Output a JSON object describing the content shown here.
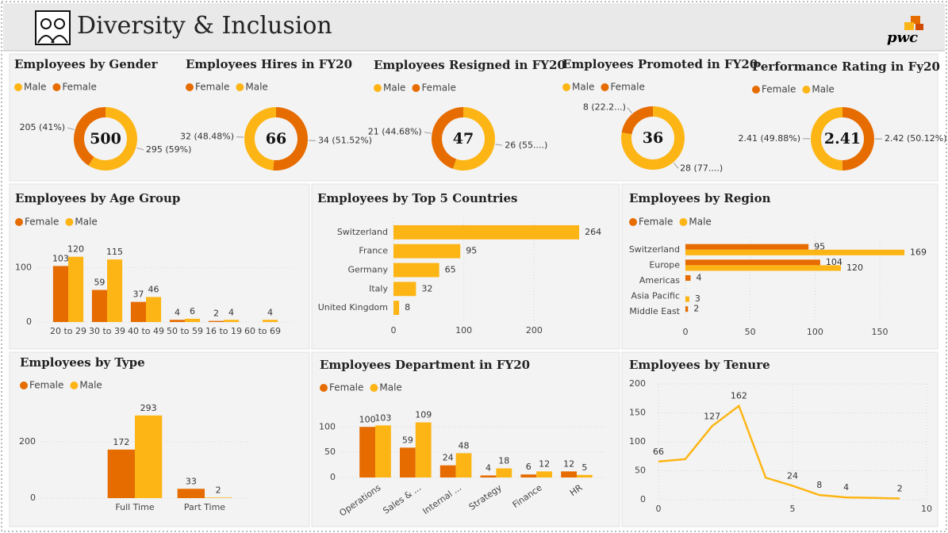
{
  "header": {
    "title": "Diversity & Inclusion",
    "logo": "pwc"
  },
  "chart_data": [
    {
      "type": "donut",
      "title": "Employees by Gender",
      "categories": [
        "Male",
        "Female"
      ],
      "values": [
        295,
        205
      ],
      "value_labels": [
        "295 (59%)",
        "205 (41%)"
      ],
      "colors": [
        "#FDB515",
        "#E66C00"
      ],
      "center_value": 500
    },
    {
      "type": "donut",
      "title": "Employees Hires in FY20",
      "categories": [
        "Female",
        "Male"
      ],
      "values": [
        34,
        32
      ],
      "value_labels": [
        "34 (51.52%)",
        "32 (48.48%)"
      ],
      "colors": [
        "#E66C00",
        "#FDB515"
      ],
      "center_value": 66
    },
    {
      "type": "donut",
      "title": "Employees Resigned in FY20",
      "categories": [
        "Male",
        "Female"
      ],
      "values": [
        26,
        21
      ],
      "value_labels": [
        "26 (55....)",
        "21 (44.68%)"
      ],
      "colors": [
        "#FDB515",
        "#E66C00"
      ],
      "center_value": 47
    },
    {
      "type": "donut",
      "title": "Employees Promoted in FY20",
      "categories": [
        "Male",
        "Female"
      ],
      "values": [
        28,
        8
      ],
      "value_labels": [
        "28 (77....)",
        "8 (22.2...)"
      ],
      "colors": [
        "#FDB515",
        "#E66C00"
      ],
      "center_value": 36
    },
    {
      "type": "donut",
      "title": "Performance Rating in Fy20",
      "categories": [
        "Female",
        "Male"
      ],
      "values": [
        2.42,
        2.41
      ],
      "value_labels": [
        "2.42 (50.12%)",
        "2.41 (49.88%)"
      ],
      "colors": [
        "#E66C00",
        "#FDB515"
      ],
      "center_value": 2.41
    },
    {
      "type": "bar",
      "title": "Employees by Age Group",
      "categories": [
        "20 to 29",
        "30 to 39",
        "40 to 49",
        "50 to 59",
        "16 to 19",
        "60 to 69"
      ],
      "series": [
        {
          "name": "Female",
          "color": "#E66C00",
          "values": [
            103,
            59,
            37,
            4,
            2,
            null
          ]
        },
        {
          "name": "Male",
          "color": "#FDB515",
          "values": [
            120,
            115,
            46,
            6,
            4,
            4
          ]
        }
      ],
      "ylim": [
        0,
        140
      ],
      "yticks": [
        0,
        100
      ],
      "grid": true
    },
    {
      "type": "hbar",
      "title": "Employees by Top 5 Countries",
      "categories": [
        "Switzerland",
        "France",
        "Germany",
        "Italy",
        "United Kingdom"
      ],
      "values": [
        264,
        95,
        65,
        32,
        8
      ],
      "color": "#FDB515",
      "xlim": [
        0,
        300
      ],
      "xticks": [
        0,
        100,
        200
      ],
      "grid": true
    },
    {
      "type": "hbar",
      "title": "Employees by Region",
      "categories": [
        "Switzerland",
        "Europe",
        "Americas",
        "Asia Pacific",
        "Middle East"
      ],
      "series": [
        {
          "name": "Female",
          "color": "#E66C00",
          "values": [
            95,
            104,
            4,
            null,
            2
          ]
        },
        {
          "name": "Male",
          "color": "#FDB515",
          "values": [
            169,
            120,
            null,
            3,
            null
          ]
        }
      ],
      "xlim": [
        0,
        180
      ],
      "xticks": [
        0,
        50,
        100,
        150
      ],
      "grid": true
    },
    {
      "type": "bar",
      "title": "Employees by Type",
      "categories": [
        "Full Time",
        "Part Time"
      ],
      "series": [
        {
          "name": "Female",
          "color": "#E66C00",
          "values": [
            172,
            33
          ]
        },
        {
          "name": "Male",
          "color": "#FDB515",
          "values": [
            293,
            2
          ]
        }
      ],
      "ylim": [
        0,
        360
      ],
      "yticks": [
        0,
        200
      ],
      "grid": true
    },
    {
      "type": "bar",
      "title": "Employees Department in FY20",
      "categories": [
        "Operations",
        "Sales & ...",
        "Internal ...",
        "Strategy",
        "Finance",
        "HR"
      ],
      "series": [
        {
          "name": "Female",
          "color": "#E66C00",
          "values": [
            100,
            59,
            24,
            4,
            6,
            12
          ]
        },
        {
          "name": "Male",
          "color": "#FDB515",
          "values": [
            103,
            109,
            48,
            18,
            12,
            5
          ]
        }
      ],
      "ylim": [
        0,
        160
      ],
      "yticks": [
        0,
        50,
        100
      ],
      "grid": true
    },
    {
      "type": "line",
      "title": "Employees by Tenure",
      "x": [
        0,
        1,
        2,
        3,
        4,
        5,
        6,
        7,
        8,
        9
      ],
      "values": [
        66,
        70,
        127,
        162,
        38,
        24,
        8,
        4,
        3,
        2
      ],
      "value_labels": [
        "66",
        null,
        "127",
        "162",
        null,
        "24",
        "8",
        "4",
        null,
        "2"
      ],
      "color": "#FDB515",
      "xlim": [
        0,
        10
      ],
      "xticks": [
        0,
        5,
        10
      ],
      "ylim": [
        0,
        200
      ],
      "yticks": [
        0,
        50,
        100,
        150,
        200
      ],
      "grid": true
    }
  ]
}
